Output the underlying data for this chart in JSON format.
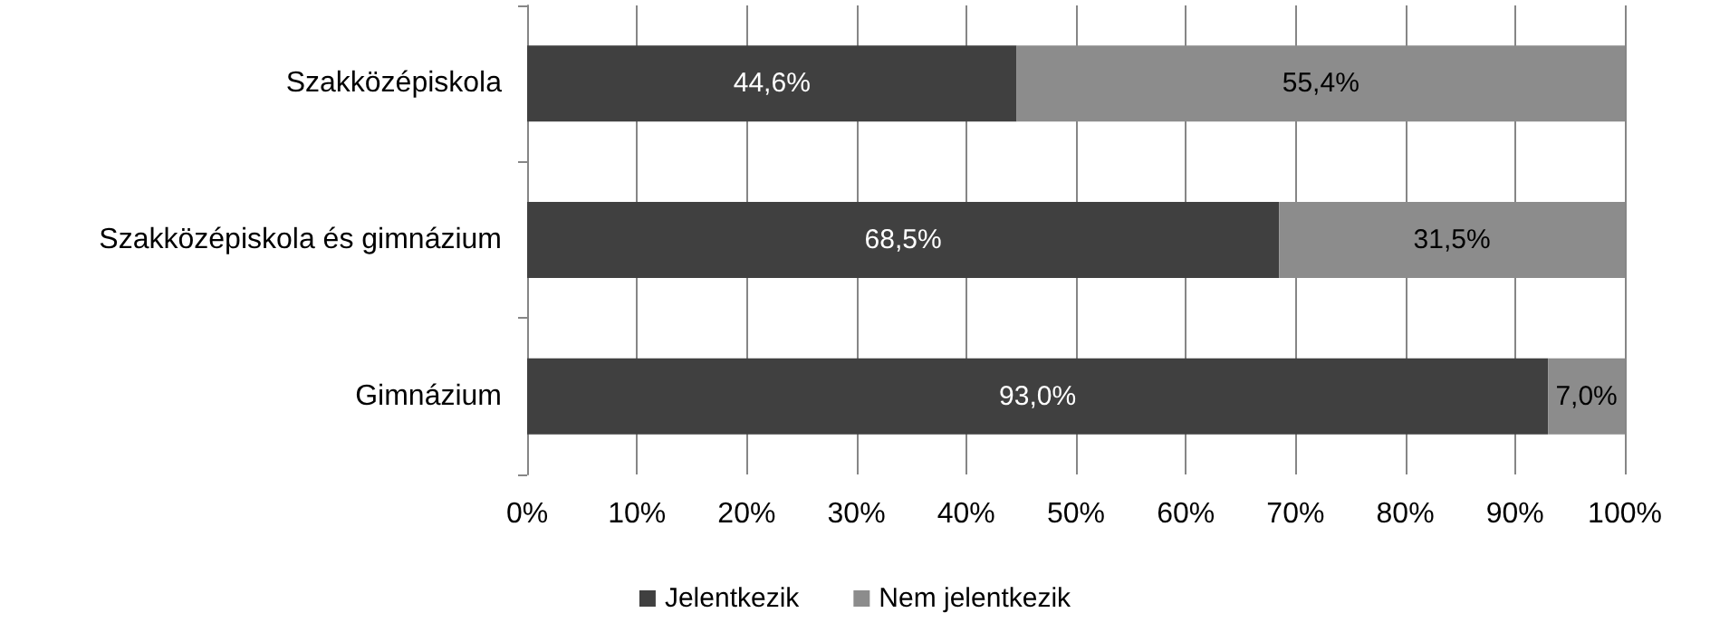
{
  "chart_data": {
    "type": "bar",
    "orientation": "horizontal",
    "stacked": true,
    "categories": [
      "Szakközépiskola",
      "Szakközépiskola és gimnázium",
      "Gimnázium"
    ],
    "series": [
      {
        "name": "Jelentkezik",
        "color": "#404040",
        "values": [
          44.6,
          68.5,
          93.0
        ],
        "value_labels": [
          "44,6%",
          "68,5%",
          "93,0%"
        ]
      },
      {
        "name": "Nem jelentkezik",
        "color": "#8c8c8c",
        "values": [
          55.4,
          31.5,
          7.0
        ],
        "value_labels": [
          "55,4%",
          "31,5%",
          "7,0%"
        ]
      }
    ],
    "xlim": [
      0,
      100
    ],
    "xticks": [
      {
        "value": 0,
        "label": "0%"
      },
      {
        "value": 10,
        "label": "10%"
      },
      {
        "value": 20,
        "label": "20%"
      },
      {
        "value": 30,
        "label": "30%"
      },
      {
        "value": 40,
        "label": "40%"
      },
      {
        "value": 50,
        "label": "50%"
      },
      {
        "value": 60,
        "label": "60%"
      },
      {
        "value": 70,
        "label": "70%"
      },
      {
        "value": 80,
        "label": "80%"
      },
      {
        "value": 90,
        "label": "90%"
      },
      {
        "value": 100,
        "label": "100%"
      }
    ],
    "grid": "x",
    "legend": "bottom"
  }
}
